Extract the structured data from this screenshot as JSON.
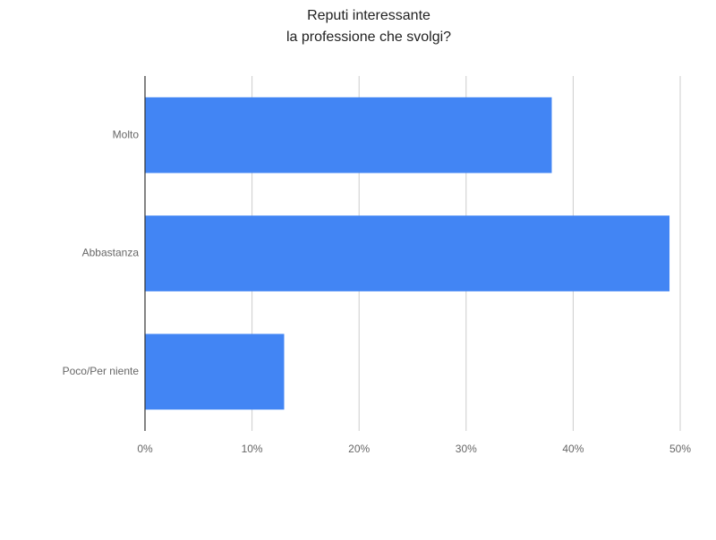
{
  "chart_data": {
    "type": "hbar",
    "title": [
      "Reputi interessante",
      "la professione che svolgi?"
    ],
    "categories": [
      "Molto",
      "Abbastanza",
      "Poco/Per niente"
    ],
    "values": [
      38,
      49,
      13
    ],
    "color": "#4285f4",
    "xlim": [
      0,
      50
    ],
    "xticks": [
      {
        "value": 0,
        "label": "0%"
      },
      {
        "value": 10,
        "label": "10%"
      },
      {
        "value": 20,
        "label": "20%"
      },
      {
        "value": 30,
        "label": "30%"
      },
      {
        "value": 40,
        "label": "40%"
      },
      {
        "value": 50,
        "label": "50%"
      }
    ],
    "grid": true
  }
}
